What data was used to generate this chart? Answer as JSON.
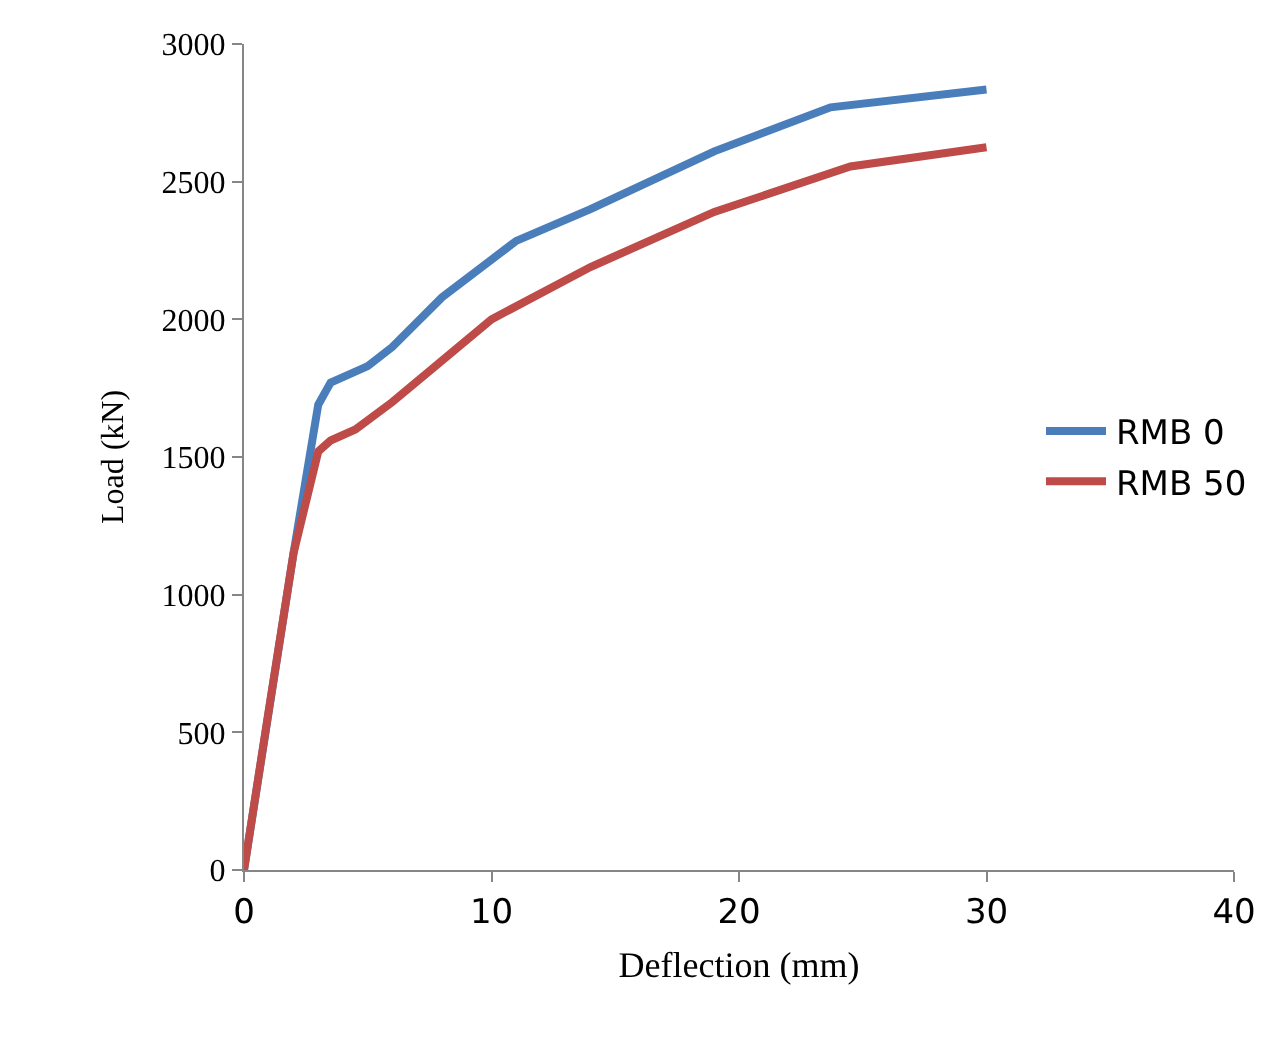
{
  "chart_data": {
    "type": "line",
    "xlabel": "Deflection (mm)",
    "ylabel": "Load (kN)",
    "xlim": [
      0,
      40
    ],
    "xticks": [
      0,
      10,
      20,
      30,
      40
    ],
    "ylim": [
      0,
      3000
    ],
    "yticks": [
      0,
      500,
      1000,
      1500,
      2000,
      2500,
      3000
    ],
    "grid": false,
    "legend": "right",
    "marker": "none",
    "line_style": "solid",
    "series": [
      {
        "name": "RMB 0",
        "color": "#4a7ebb",
        "x": [
          0,
          2,
          3,
          3.5,
          4,
          5,
          6,
          8,
          11,
          14,
          19,
          23.7,
          30
        ],
        "values": [
          0,
          1150,
          1690,
          1770,
          1790,
          1830,
          1900,
          2080,
          2285,
          2400,
          2610,
          2770,
          2835
        ]
      },
      {
        "name": "RMB 50",
        "color": "#be4b48",
        "x": [
          0,
          1,
          2,
          3,
          3.5,
          4.5,
          6,
          8,
          10,
          14,
          19,
          24.5,
          30
        ],
        "values": [
          0,
          580,
          1150,
          1520,
          1560,
          1600,
          1700,
          1850,
          2000,
          2190,
          2390,
          2555,
          2625
        ]
      }
    ]
  }
}
